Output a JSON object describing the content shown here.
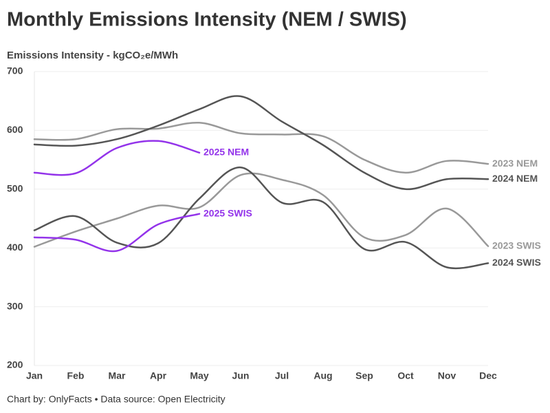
{
  "chart_data": {
    "type": "line",
    "title": "Monthly Emissions Intensity (NEM / SWIS)",
    "y_label": "Emissions Intensity - kgCO₂e/MWh",
    "caption": "Chart by: OnlyFacts • Data source: Open Electricity",
    "categories": [
      "Jan",
      "Feb",
      "Mar",
      "Apr",
      "May",
      "Jun",
      "Jul",
      "Aug",
      "Sep",
      "Oct",
      "Nov",
      "Dec"
    ],
    "ylim": [
      200,
      700
    ],
    "yticks": [
      200,
      300,
      400,
      500,
      600,
      700
    ],
    "grid": true,
    "series": [
      {
        "name": "2023 NEM",
        "color": "#999999",
        "values": [
          585,
          585,
          602,
          603,
          613,
          595,
          593,
          590,
          550,
          528,
          548,
          543
        ]
      },
      {
        "name": "2024 NEM",
        "color": "#555555",
        "values": [
          576,
          574,
          585,
          608,
          636,
          658,
          615,
          575,
          528,
          500,
          517,
          517
        ]
      },
      {
        "name": "2025 NEM",
        "color": "#9333ea",
        "values": [
          528,
          527,
          570,
          582,
          562,
          null,
          null,
          null,
          null,
          null,
          null,
          null
        ]
      },
      {
        "name": "2023 SWIS",
        "color": "#999999",
        "values": [
          402,
          428,
          450,
          472,
          469,
          524,
          516,
          490,
          418,
          422,
          467,
          403
        ]
      },
      {
        "name": "2024 SWIS",
        "color": "#555555",
        "values": [
          430,
          454,
          409,
          408,
          484,
          537,
          477,
          478,
          398,
          410,
          367,
          374
        ]
      },
      {
        "name": "2025 SWIS",
        "color": "#9333ea",
        "values": [
          418,
          414,
          395,
          440,
          458,
          null,
          null,
          null,
          null,
          null,
          null,
          null
        ]
      }
    ]
  }
}
